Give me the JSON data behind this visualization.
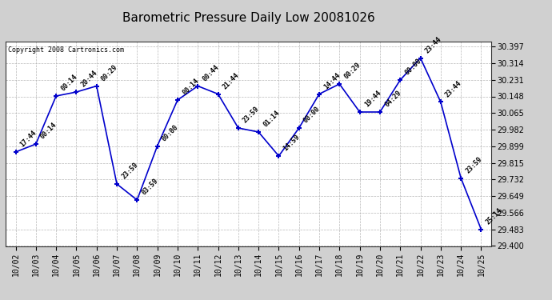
{
  "title": "Barometric Pressure Daily Low 20081026",
  "copyright": "Copyright 2008 Cartronics.com",
  "background_color": "#d0d0d0",
  "plot_bg_color": "#ffffff",
  "line_color": "#0000cc",
  "marker_color": "#0000cc",
  "grid_color": "#b0b0b0",
  "x_labels": [
    "10/02",
    "10/03",
    "10/04",
    "10/05",
    "10/06",
    "10/07",
    "10/08",
    "10/09",
    "10/10",
    "10/11",
    "10/12",
    "10/13",
    "10/14",
    "10/15",
    "10/16",
    "10/17",
    "10/18",
    "10/19",
    "10/20",
    "10/21",
    "10/22",
    "10/23",
    "10/24",
    "10/25"
  ],
  "y_values": [
    29.87,
    29.91,
    30.15,
    30.17,
    30.2,
    29.71,
    29.63,
    29.9,
    30.13,
    30.2,
    30.16,
    29.99,
    29.97,
    29.85,
    29.99,
    30.16,
    30.21,
    30.07,
    30.07,
    30.23,
    30.34,
    30.12,
    29.74,
    29.483
  ],
  "annotations": [
    {
      "idx": 0,
      "label": "17:44"
    },
    {
      "idx": 1,
      "label": "00:14"
    },
    {
      "idx": 2,
      "label": "00:14"
    },
    {
      "idx": 3,
      "label": "20:44"
    },
    {
      "idx": 4,
      "label": "00:29"
    },
    {
      "idx": 5,
      "label": "23:59"
    },
    {
      "idx": 6,
      "label": "03:59"
    },
    {
      "idx": 7,
      "label": "00:00"
    },
    {
      "idx": 8,
      "label": "00:14"
    },
    {
      "idx": 9,
      "label": "00:44"
    },
    {
      "idx": 10,
      "label": "21:44"
    },
    {
      "idx": 11,
      "label": "23:59"
    },
    {
      "idx": 12,
      "label": "01:14"
    },
    {
      "idx": 13,
      "label": "14:59"
    },
    {
      "idx": 14,
      "label": "00:00"
    },
    {
      "idx": 15,
      "label": "14:44"
    },
    {
      "idx": 16,
      "label": "00:29"
    },
    {
      "idx": 17,
      "label": "19:44"
    },
    {
      "idx": 18,
      "label": "04:29"
    },
    {
      "idx": 19,
      "label": "00:00"
    },
    {
      "idx": 20,
      "label": "23:44"
    },
    {
      "idx": 21,
      "label": "23:44"
    },
    {
      "idx": 22,
      "label": "23:59"
    },
    {
      "idx": 23,
      "label": "25:14"
    }
  ],
  "ylim": [
    29.4,
    30.42
  ],
  "yticks": [
    29.4,
    29.483,
    29.566,
    29.649,
    29.732,
    29.815,
    29.899,
    29.982,
    30.065,
    30.148,
    30.231,
    30.314,
    30.397
  ],
  "title_fontsize": 11,
  "tick_fontsize": 7,
  "annotation_fontsize": 6,
  "copyright_fontsize": 6
}
